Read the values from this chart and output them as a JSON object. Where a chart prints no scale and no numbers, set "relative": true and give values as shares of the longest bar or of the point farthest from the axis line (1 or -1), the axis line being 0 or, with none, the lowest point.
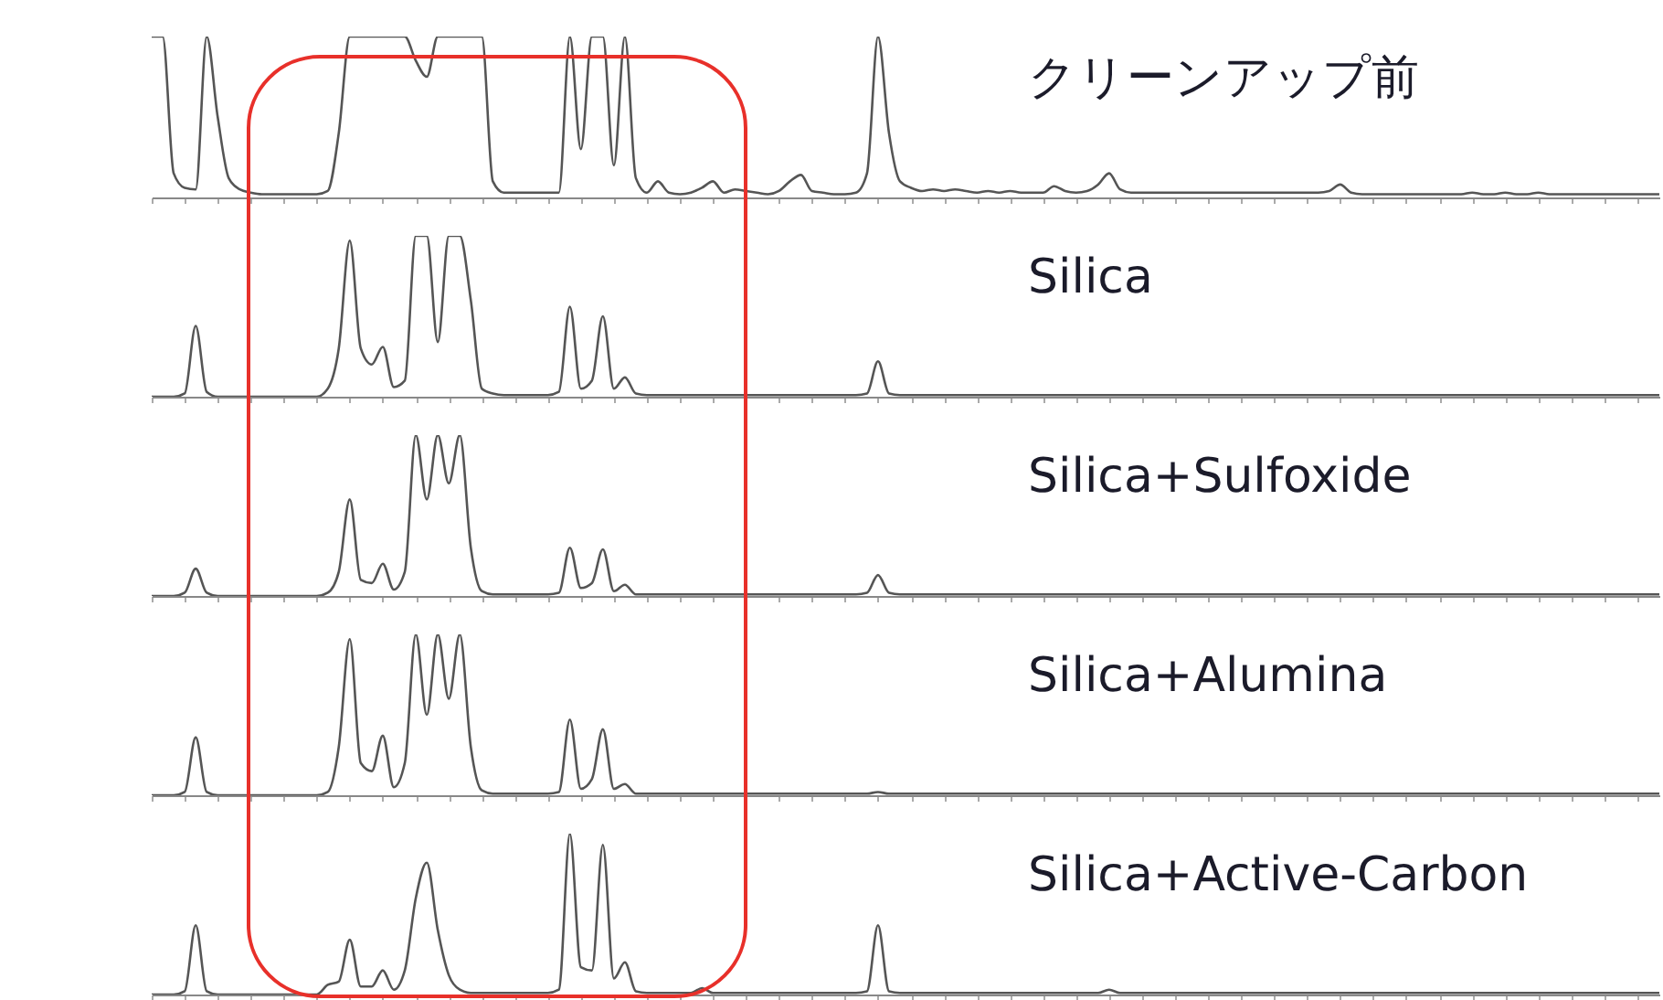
{
  "chart_data": [
    {
      "type": "line",
      "title": "クリーンアップ前",
      "relative": true,
      "tick_labels": false,
      "categories": [
        null,
        null,
        null,
        null,
        null,
        null,
        null,
        null,
        null,
        null,
        null,
        null,
        null,
        null,
        null,
        null,
        null,
        null,
        null,
        null,
        null,
        null,
        null,
        null,
        null,
        null,
        null,
        null,
        null,
        null,
        null,
        null,
        null,
        null,
        null,
        null,
        null,
        null,
        null,
        null,
        null,
        null,
        null,
        null,
        null,
        null,
        null,
        null,
        null,
        null,
        null,
        null,
        null,
        null,
        null,
        null,
        null,
        null,
        null,
        null,
        null,
        null,
        null,
        null,
        null,
        null,
        null,
        null,
        null,
        null,
        null,
        null,
        null,
        null,
        null,
        null,
        null,
        null,
        null,
        null,
        null,
        null,
        null,
        null,
        null,
        null,
        null,
        null,
        null,
        null,
        null,
        null,
        null,
        null,
        null,
        null,
        null,
        null,
        null,
        null,
        null,
        null,
        null,
        null,
        null,
        null,
        null,
        null,
        null,
        null,
        null,
        null,
        null,
        null,
        null,
        null,
        null,
        null,
        null,
        null,
        null,
        null,
        null,
        null,
        null,
        null,
        null,
        null,
        null,
        null,
        null,
        null,
        null,
        null,
        null,
        null,
        null,
        null
      ],
      "series": [
        {
          "color": "#555555",
          "values": [
            1,
            1,
            0.15,
            0.06,
            0.05,
            1,
            0.5,
            0.12,
            0.05,
            0.03,
            0.02,
            0.02,
            0.02,
            0.02,
            0.02,
            0.02,
            0.04,
            0.4,
            1,
            1,
            1,
            1,
            1,
            1,
            0.85,
            0.75,
            1,
            1,
            1,
            1,
            1,
            0.1,
            0.03,
            0.03,
            0.03,
            0.03,
            0.03,
            0.03,
            1,
            0.3,
            1,
            1,
            0.2,
            1,
            0.12,
            0.03,
            0.1,
            0.03,
            0.02,
            0.03,
            0.06,
            0.1,
            0.03,
            0.05,
            0.04,
            0.03,
            0.02,
            0.04,
            0.1,
            0.14,
            0.04,
            0.03,
            0.02,
            0.02,
            0.03,
            0.15,
            1,
            0.4,
            0.1,
            0.06,
            0.04,
            0.05,
            0.04,
            0.05,
            0.04,
            0.03,
            0.04,
            0.03,
            0.04,
            0.03,
            0.03,
            0.03,
            0.07,
            0.04,
            0.03,
            0.04,
            0.08,
            0.15,
            0.05,
            0.03,
            0.03,
            0.03,
            0.03,
            0.03,
            0.03,
            0.03,
            0.03,
            0.03,
            0.03,
            0.03,
            0.03,
            0.03,
            0.03,
            0.03,
            0.03,
            0.03,
            0.03,
            0.04,
            0.08,
            0.03,
            0.02,
            0.02,
            0.02,
            0.02,
            0.02,
            0.02,
            0.02,
            0.02,
            0.02,
            0.02,
            0.03,
            0.02,
            0.02,
            0.03,
            0.02,
            0.02,
            0.03,
            0.02,
            0.02,
            0.02,
            0.02,
            0.02,
            0.02,
            0.02,
            0.02,
            0.02,
            0.02,
            0.02
          ]
        }
      ]
    },
    {
      "type": "line",
      "title": "Silica",
      "relative": true,
      "tick_labels": false,
      "categories": [
        null,
        null,
        null,
        null,
        null,
        null,
        null,
        null,
        null,
        null,
        null,
        null,
        null,
        null,
        null,
        null,
        null,
        null,
        null,
        null,
        null,
        null,
        null,
        null,
        null,
        null,
        null,
        null,
        null,
        null,
        null,
        null,
        null,
        null,
        null,
        null,
        null,
        null,
        null,
        null,
        null,
        null,
        null,
        null,
        null,
        null,
        null,
        null,
        null,
        null,
        null,
        null,
        null,
        null,
        null,
        null,
        null,
        null,
        null,
        null,
        null,
        null,
        null,
        null,
        null,
        null,
        null,
        null,
        null,
        null,
        null,
        null,
        null,
        null,
        null,
        null,
        null,
        null,
        null,
        null,
        null,
        null,
        null,
        null,
        null,
        null,
        null,
        null,
        null,
        null,
        null,
        null,
        null,
        null,
        null,
        null,
        null,
        null,
        null,
        null,
        null,
        null,
        null,
        null,
        null,
        null,
        null,
        null,
        null,
        null,
        null,
        null,
        null,
        null,
        null,
        null,
        null,
        null,
        null,
        null,
        null,
        null,
        null,
        null,
        null,
        null,
        null,
        null,
        null,
        null,
        null,
        null,
        null,
        null,
        null,
        null,
        null,
        null
      ],
      "series": [
        {
          "color": "#555555",
          "values": [
            0,
            0,
            0,
            0.02,
            0.44,
            0.03,
            0,
            0,
            0,
            0,
            0,
            0,
            0,
            0,
            0,
            0,
            0.05,
            0.3,
            0.97,
            0.3,
            0.2,
            0.31,
            0.06,
            0.1,
            1,
            1,
            0.34,
            1,
            1,
            0.6,
            0.05,
            0.02,
            0.01,
            0.01,
            0.01,
            0.01,
            0.01,
            0.03,
            0.56,
            0.05,
            0.1,
            0.5,
            0.05,
            0.12,
            0.02,
            0.01,
            0.01,
            0.01,
            0.01,
            0.01,
            0.01,
            0.01,
            0.01,
            0.01,
            0.01,
            0.01,
            0.01,
            0.01,
            0.01,
            0.01,
            0.01,
            0.01,
            0.01,
            0.01,
            0.01,
            0.02,
            0.22,
            0.02,
            0.01,
            0.01,
            0.01,
            0.01,
            0.01,
            0.01,
            0.01,
            0.01,
            0.01,
            0.01,
            0.01,
            0.01,
            0.01,
            0.01,
            0.01,
            0.01,
            0.01,
            0.01,
            0.01,
            0.01,
            0.01,
            0.01,
            0.01,
            0.01,
            0.01,
            0.01,
            0.01,
            0.01,
            0.01,
            0.01,
            0.01,
            0.01,
            0.01,
            0.01,
            0.01,
            0.01,
            0.01,
            0.01,
            0.01,
            0.01,
            0.01,
            0.01,
            0.01,
            0.01,
            0.01,
            0.01,
            0.01,
            0.01,
            0.01,
            0.01,
            0.01,
            0.01,
            0.01,
            0.01,
            0.01,
            0.01,
            0.01,
            0.01,
            0.01,
            0.01,
            0.01,
            0.01,
            0.01,
            0.01,
            0.01,
            0.01,
            0.01,
            0.01,
            0.01,
            0.01
          ]
        }
      ]
    },
    {
      "type": "line",
      "title": "Silica+Sulfoxide",
      "relative": true,
      "tick_labels": false,
      "categories": [
        null,
        null,
        null,
        null,
        null,
        null,
        null,
        null,
        null,
        null,
        null,
        null,
        null,
        null,
        null,
        null,
        null,
        null,
        null,
        null,
        null,
        null,
        null,
        null,
        null,
        null,
        null,
        null,
        null,
        null,
        null,
        null,
        null,
        null,
        null,
        null,
        null,
        null,
        null,
        null,
        null,
        null,
        null,
        null,
        null,
        null,
        null,
        null,
        null,
        null,
        null,
        null,
        null,
        null,
        null,
        null,
        null,
        null,
        null,
        null,
        null,
        null,
        null,
        null,
        null,
        null,
        null,
        null,
        null,
        null,
        null,
        null,
        null,
        null,
        null,
        null,
        null,
        null,
        null,
        null,
        null,
        null,
        null,
        null,
        null,
        null,
        null,
        null,
        null,
        null,
        null,
        null,
        null,
        null,
        null,
        null,
        null,
        null,
        null,
        null,
        null,
        null,
        null,
        null,
        null,
        null,
        null,
        null,
        null,
        null,
        null,
        null,
        null,
        null,
        null,
        null,
        null,
        null,
        null,
        null,
        null,
        null,
        null,
        null,
        null,
        null,
        null,
        null,
        null,
        null,
        null,
        null,
        null,
        null,
        null,
        null,
        null,
        null
      ],
      "series": [
        {
          "color": "#555555",
          "values": [
            0,
            0,
            0,
            0.02,
            0.17,
            0.02,
            0,
            0,
            0,
            0,
            0,
            0,
            0,
            0,
            0,
            0,
            0.02,
            0.15,
            0.6,
            0.1,
            0.08,
            0.2,
            0.04,
            0.15,
            1,
            0.6,
            1,
            0.7,
            1,
            0.3,
            0.03,
            0.01,
            0.01,
            0.01,
            0.01,
            0.01,
            0.01,
            0.02,
            0.3,
            0.05,
            0.08,
            0.29,
            0.03,
            0.07,
            0.01,
            0.01,
            0.01,
            0.01,
            0.01,
            0.01,
            0.01,
            0.01,
            0.01,
            0.01,
            0.01,
            0.01,
            0.01,
            0.01,
            0.01,
            0.01,
            0.01,
            0.01,
            0.01,
            0.01,
            0.01,
            0.02,
            0.13,
            0.02,
            0.01,
            0.01,
            0.01,
            0.01,
            0.01,
            0.01,
            0.01,
            0.01,
            0.01,
            0.01,
            0.01,
            0.01,
            0.01,
            0.01,
            0.01,
            0.01,
            0.01,
            0.01,
            0.01,
            0.01,
            0.01,
            0.01,
            0.01,
            0.01,
            0.01,
            0.01,
            0.01,
            0.01,
            0.01,
            0.01,
            0.01,
            0.01,
            0.01,
            0.01,
            0.01,
            0.01,
            0.01,
            0.01,
            0.01,
            0.01,
            0.01,
            0.01,
            0.01,
            0.01,
            0.01,
            0.01,
            0.01,
            0.01,
            0.01,
            0.01,
            0.01,
            0.01,
            0.01,
            0.01,
            0.01,
            0.01,
            0.01,
            0.01,
            0.01,
            0.01,
            0.01,
            0.01,
            0.01,
            0.01,
            0.01,
            0.01,
            0.01,
            0.01,
            0.01,
            0.01
          ]
        }
      ]
    },
    {
      "type": "line",
      "title": "Silica+Alumina",
      "relative": true,
      "tick_labels": false,
      "categories": [
        null,
        null,
        null,
        null,
        null,
        null,
        null,
        null,
        null,
        null,
        null,
        null,
        null,
        null,
        null,
        null,
        null,
        null,
        null,
        null,
        null,
        null,
        null,
        null,
        null,
        null,
        null,
        null,
        null,
        null,
        null,
        null,
        null,
        null,
        null,
        null,
        null,
        null,
        null,
        null,
        null,
        null,
        null,
        null,
        null,
        null,
        null,
        null,
        null,
        null,
        null,
        null,
        null,
        null,
        null,
        null,
        null,
        null,
        null,
        null,
        null,
        null,
        null,
        null,
        null,
        null,
        null,
        null,
        null,
        null,
        null,
        null,
        null,
        null,
        null,
        null,
        null,
        null,
        null,
        null,
        null,
        null,
        null,
        null,
        null,
        null,
        null,
        null,
        null,
        null,
        null,
        null,
        null,
        null,
        null,
        null,
        null,
        null,
        null,
        null,
        null,
        null,
        null,
        null,
        null,
        null,
        null,
        null,
        null,
        null,
        null,
        null,
        null,
        null,
        null,
        null,
        null,
        null,
        null,
        null,
        null,
        null,
        null,
        null,
        null,
        null,
        null,
        null,
        null,
        null,
        null,
        null,
        null,
        null,
        null,
        null,
        null,
        null
      ],
      "series": [
        {
          "color": "#555555",
          "values": [
            0,
            0,
            0,
            0.02,
            0.36,
            0.02,
            0,
            0,
            0,
            0,
            0,
            0,
            0,
            0,
            0,
            0,
            0.02,
            0.3,
            0.97,
            0.2,
            0.15,
            0.37,
            0.05,
            0.2,
            1,
            0.5,
            1,
            0.6,
            1,
            0.3,
            0.03,
            0.01,
            0.01,
            0.01,
            0.01,
            0.01,
            0.01,
            0.02,
            0.47,
            0.04,
            0.1,
            0.41,
            0.04,
            0.07,
            0.01,
            0.01,
            0.01,
            0.01,
            0.01,
            0.01,
            0.01,
            0.01,
            0.01,
            0.01,
            0.01,
            0.01,
            0.01,
            0.01,
            0.01,
            0.01,
            0.01,
            0.01,
            0.01,
            0.01,
            0.01,
            0.01,
            0.02,
            0.01,
            0.01,
            0.01,
            0.01,
            0.01,
            0.01,
            0.01,
            0.01,
            0.01,
            0.01,
            0.01,
            0.01,
            0.01,
            0.01,
            0.01,
            0.01,
            0.01,
            0.01,
            0.01,
            0.01,
            0.01,
            0.01,
            0.01,
            0.01,
            0.01,
            0.01,
            0.01,
            0.01,
            0.01,
            0.01,
            0.01,
            0.01,
            0.01,
            0.01,
            0.01,
            0.01,
            0.01,
            0.01,
            0.01,
            0.01,
            0.01,
            0.01,
            0.01,
            0.01,
            0.01,
            0.01,
            0.01,
            0.01,
            0.01,
            0.01,
            0.01,
            0.01,
            0.01,
            0.01,
            0.01,
            0.01,
            0.01,
            0.01,
            0.01,
            0.01,
            0.01,
            0.01,
            0.01,
            0.01,
            0.01,
            0.01,
            0.01,
            0.01,
            0.01,
            0.01,
            0.01
          ]
        }
      ]
    },
    {
      "type": "line",
      "title": "Silica+Active-Carbon",
      "relative": true,
      "tick_labels": false,
      "categories": [
        null,
        null,
        null,
        null,
        null,
        null,
        null,
        null,
        null,
        null,
        null,
        null,
        null,
        null,
        null,
        null,
        null,
        null,
        null,
        null,
        null,
        null,
        null,
        null,
        null,
        null,
        null,
        null,
        null,
        null,
        null,
        null,
        null,
        null,
        null,
        null,
        null,
        null,
        null,
        null,
        null,
        null,
        null,
        null,
        null,
        null,
        null,
        null,
        null,
        null,
        null,
        null,
        null,
        null,
        null,
        null,
        null,
        null,
        null,
        null,
        null,
        null,
        null,
        null,
        null,
        null,
        null,
        null,
        null,
        null,
        null,
        null,
        null,
        null,
        null,
        null,
        null,
        null,
        null,
        null,
        null,
        null,
        null,
        null,
        null,
        null,
        null,
        null,
        null,
        null,
        null,
        null,
        null,
        null,
        null,
        null,
        null,
        null,
        null,
        null,
        null,
        null,
        null,
        null,
        null,
        null,
        null,
        null,
        null,
        null,
        null,
        null,
        null,
        null,
        null,
        null,
        null,
        null,
        null,
        null,
        null,
        null,
        null,
        null,
        null,
        null,
        null,
        null,
        null,
        null,
        null,
        null,
        null,
        null,
        null,
        null,
        null,
        null
      ],
      "series": [
        {
          "color": "#555555",
          "values": [
            0,
            0,
            0,
            0.02,
            0.43,
            0.02,
            0,
            0,
            0,
            0,
            0,
            0,
            0,
            0,
            0,
            0,
            0.06,
            0.08,
            0.34,
            0.05,
            0.05,
            0.15,
            0.03,
            0.15,
            0.6,
            0.82,
            0.4,
            0.12,
            0.03,
            0.01,
            0.01,
            0.01,
            0.01,
            0.01,
            0.01,
            0.01,
            0.01,
            0.03,
            1,
            0.17,
            0.15,
            0.93,
            0.1,
            0.2,
            0.02,
            0.01,
            0.01,
            0.01,
            0.01,
            0.01,
            0.04,
            0.01,
            0.01,
            0.01,
            0.01,
            0.01,
            0.01,
            0.01,
            0.01,
            0.01,
            0.01,
            0.01,
            0.01,
            0.01,
            0.01,
            0.02,
            0.43,
            0.02,
            0.01,
            0.01,
            0.01,
            0.01,
            0.01,
            0.01,
            0.01,
            0.01,
            0.01,
            0.01,
            0.01,
            0.01,
            0.01,
            0.01,
            0.01,
            0.01,
            0.01,
            0.01,
            0.01,
            0.03,
            0.01,
            0.01,
            0.01,
            0.01,
            0.01,
            0.01,
            0.01,
            0.01,
            0.01,
            0.01,
            0.01,
            0.01,
            0.01,
            0.01,
            0.01,
            0.01,
            0.01,
            0.01,
            0.01,
            0.01,
            0.01,
            0.01,
            0.01,
            0.01,
            0.01,
            0.01,
            0.01,
            0.01,
            0.01,
            0.01,
            0.01,
            0.01,
            0.01,
            0.01,
            0.01,
            0.01,
            0.01,
            0.01,
            0.01,
            0.01,
            0.01,
            0.01,
            0.01,
            0.01,
            0.01,
            0.01,
            0.01,
            0.01,
            0.01,
            0.01
          ]
        }
      ]
    }
  ]
}
